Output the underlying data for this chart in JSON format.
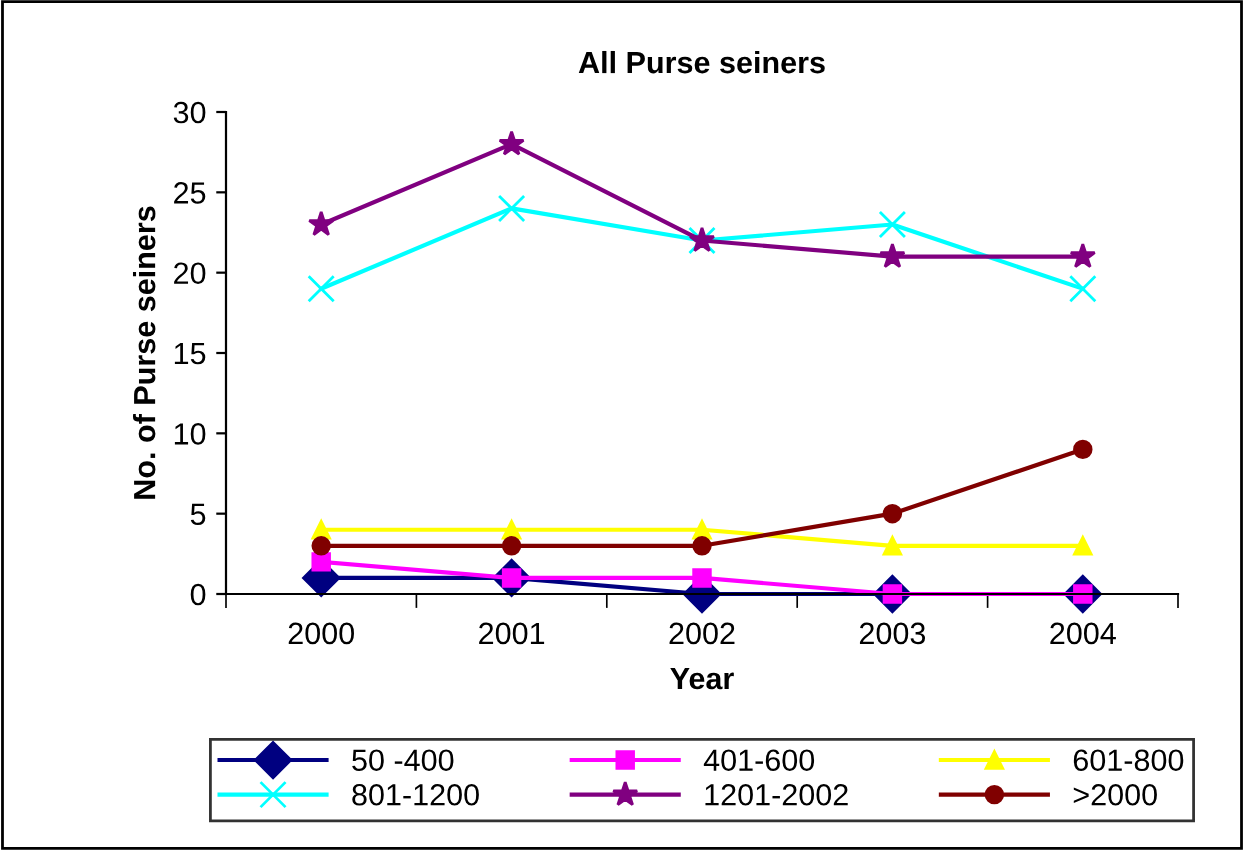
{
  "chart_data": {
    "type": "line",
    "title": "All Purse seiners",
    "xlabel": "Year",
    "ylabel": "No. of Purse seiners",
    "categories": [
      "2000",
      "2001",
      "2002",
      "2003",
      "2004"
    ],
    "ylim": [
      0,
      30
    ],
    "yticks": [
      0,
      5,
      10,
      15,
      20,
      25,
      30
    ],
    "grid": false,
    "legend": "bottom",
    "series": [
      {
        "name": "50 -400",
        "color": "#000080",
        "marker": "diamond",
        "values": [
          1,
          1,
          0,
          0,
          0
        ]
      },
      {
        "name": "401-600",
        "color": "#ff00ff",
        "marker": "square",
        "values": [
          2,
          1,
          1,
          0,
          0
        ]
      },
      {
        "name": "601-800",
        "color": "#ffff00",
        "marker": "triangle",
        "values": [
          4,
          4,
          4,
          3,
          3
        ]
      },
      {
        "name": "801-1200",
        "color": "#00ffff",
        "marker": "cross",
        "values": [
          19,
          24,
          22,
          23,
          19
        ]
      },
      {
        "name": "1201-2002",
        "color": "#800080",
        "marker": "star",
        "values": [
          23,
          28,
          22,
          21,
          21
        ]
      },
      {
        "name": ">2000",
        "color": "#800000",
        "marker": "circle",
        "values": [
          3,
          3,
          3,
          5,
          9
        ]
      }
    ]
  }
}
